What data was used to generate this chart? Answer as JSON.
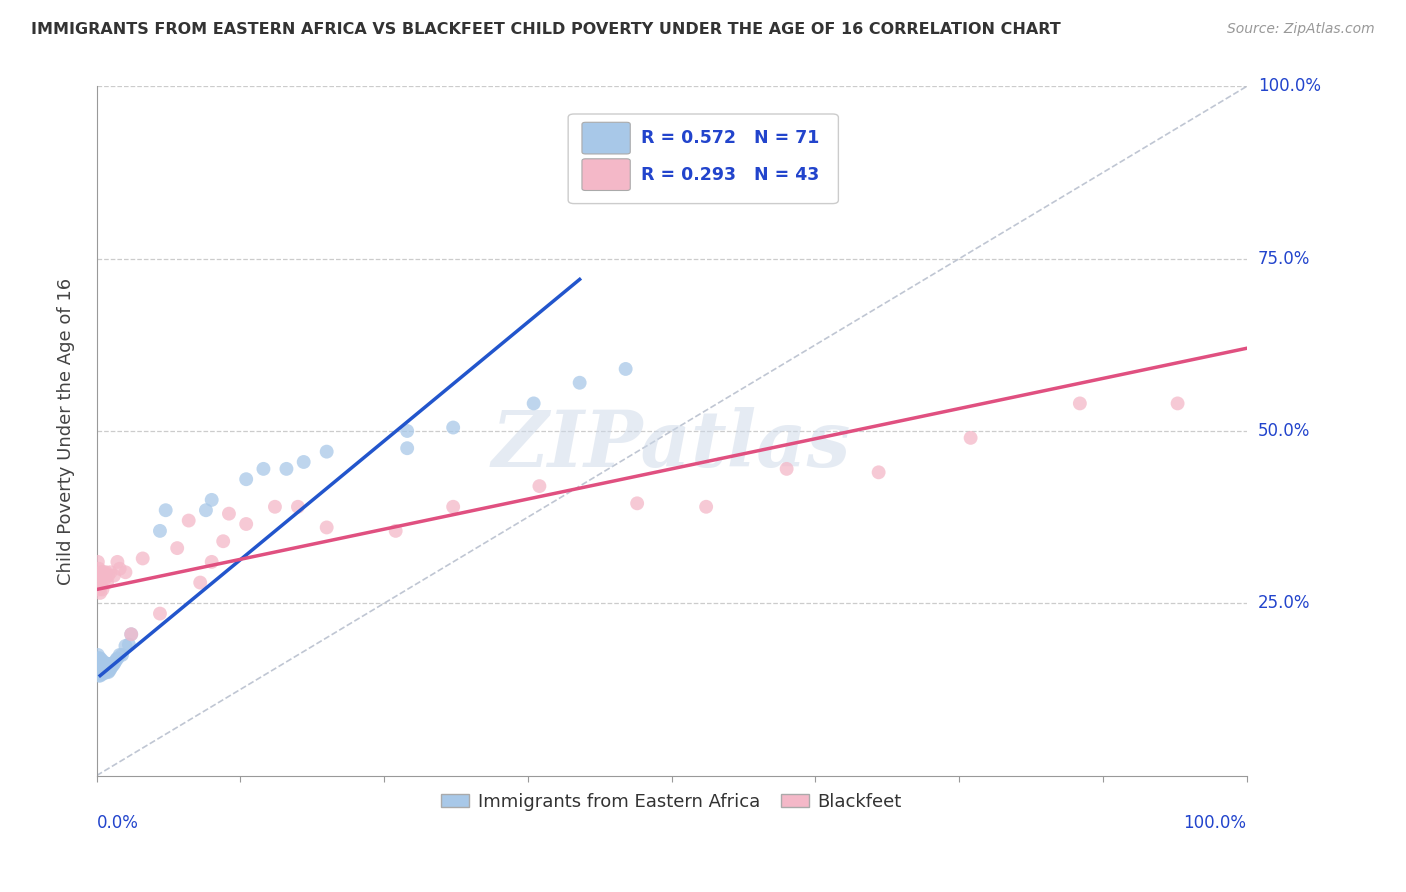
{
  "title": "IMMIGRANTS FROM EASTERN AFRICA VS BLACKFEET CHILD POVERTY UNDER THE AGE OF 16 CORRELATION CHART",
  "source": "Source: ZipAtlas.com",
  "ylabel": "Child Poverty Under the Age of 16",
  "legend_R1": "R = 0.572",
  "legend_N1": "N = 71",
  "legend_R2": "R = 0.293",
  "legend_N2": "N = 43",
  "legend_label1": "Immigrants from Eastern Africa",
  "legend_label2": "Blackfeet",
  "color_blue": "#a8c8e8",
  "color_pink": "#f4b8c8",
  "color_blue_line": "#2255cc",
  "color_pink_line": "#e05080",
  "color_legend_text": "#2244cc",
  "color_axis_label": "#2244cc",
  "watermark": "ZIPatlas",
  "blue_scatter_x": [
    0.001,
    0.001,
    0.001,
    0.001,
    0.002,
    0.002,
    0.002,
    0.002,
    0.002,
    0.002,
    0.003,
    0.003,
    0.003,
    0.003,
    0.003,
    0.003,
    0.003,
    0.004,
    0.004,
    0.004,
    0.004,
    0.004,
    0.005,
    0.005,
    0.005,
    0.005,
    0.006,
    0.006,
    0.006,
    0.006,
    0.007,
    0.007,
    0.007,
    0.008,
    0.008,
    0.008,
    0.009,
    0.009,
    0.01,
    0.01,
    0.01,
    0.011,
    0.011,
    0.012,
    0.012,
    0.013,
    0.014,
    0.015,
    0.016,
    0.017,
    0.018,
    0.02,
    0.022,
    0.025,
    0.028,
    0.03,
    0.055,
    0.06,
    0.095,
    0.1,
    0.13,
    0.145,
    0.165,
    0.18,
    0.2,
    0.27,
    0.27,
    0.31,
    0.38,
    0.42,
    0.46
  ],
  "blue_scatter_y": [
    0.155,
    0.16,
    0.17,
    0.175,
    0.145,
    0.15,
    0.155,
    0.16,
    0.165,
    0.17,
    0.145,
    0.15,
    0.155,
    0.158,
    0.162,
    0.165,
    0.17,
    0.148,
    0.152,
    0.158,
    0.163,
    0.168,
    0.148,
    0.153,
    0.158,
    0.163,
    0.148,
    0.152,
    0.158,
    0.165,
    0.152,
    0.156,
    0.162,
    0.15,
    0.155,
    0.162,
    0.152,
    0.158,
    0.15,
    0.155,
    0.162,
    0.152,
    0.16,
    0.155,
    0.162,
    0.158,
    0.16,
    0.162,
    0.165,
    0.168,
    0.17,
    0.175,
    0.175,
    0.188,
    0.19,
    0.205,
    0.355,
    0.385,
    0.385,
    0.4,
    0.43,
    0.445,
    0.445,
    0.455,
    0.47,
    0.475,
    0.5,
    0.505,
    0.54,
    0.57,
    0.59
  ],
  "pink_scatter_x": [
    0.001,
    0.001,
    0.002,
    0.002,
    0.003,
    0.003,
    0.004,
    0.004,
    0.005,
    0.005,
    0.006,
    0.007,
    0.008,
    0.009,
    0.01,
    0.012,
    0.015,
    0.018,
    0.02,
    0.025,
    0.03,
    0.04,
    0.055,
    0.07,
    0.08,
    0.09,
    0.1,
    0.11,
    0.115,
    0.13,
    0.155,
    0.175,
    0.2,
    0.26,
    0.31,
    0.385,
    0.47,
    0.53,
    0.6,
    0.68,
    0.76,
    0.855,
    0.94
  ],
  "pink_scatter_y": [
    0.29,
    0.31,
    0.27,
    0.3,
    0.265,
    0.285,
    0.275,
    0.295,
    0.27,
    0.29,
    0.295,
    0.285,
    0.295,
    0.28,
    0.29,
    0.295,
    0.29,
    0.31,
    0.3,
    0.295,
    0.205,
    0.315,
    0.235,
    0.33,
    0.37,
    0.28,
    0.31,
    0.34,
    0.38,
    0.365,
    0.39,
    0.39,
    0.36,
    0.355,
    0.39,
    0.42,
    0.395,
    0.39,
    0.445,
    0.44,
    0.49,
    0.54,
    0.54
  ],
  "blue_trendline_x": [
    0.003,
    0.42
  ],
  "blue_trendline_y": [
    0.145,
    0.72
  ],
  "pink_trendline_x": [
    0.0,
    1.0
  ],
  "pink_trendline_y": [
    0.27,
    0.62
  ],
  "xlim": [
    0,
    1.0
  ],
  "ylim": [
    0,
    1.0
  ],
  "ytick_vals": [
    0.25,
    0.5,
    0.75,
    1.0
  ],
  "ytick_labels": [
    "25.0%",
    "50.0%",
    "75.0%",
    "100.0%"
  ]
}
